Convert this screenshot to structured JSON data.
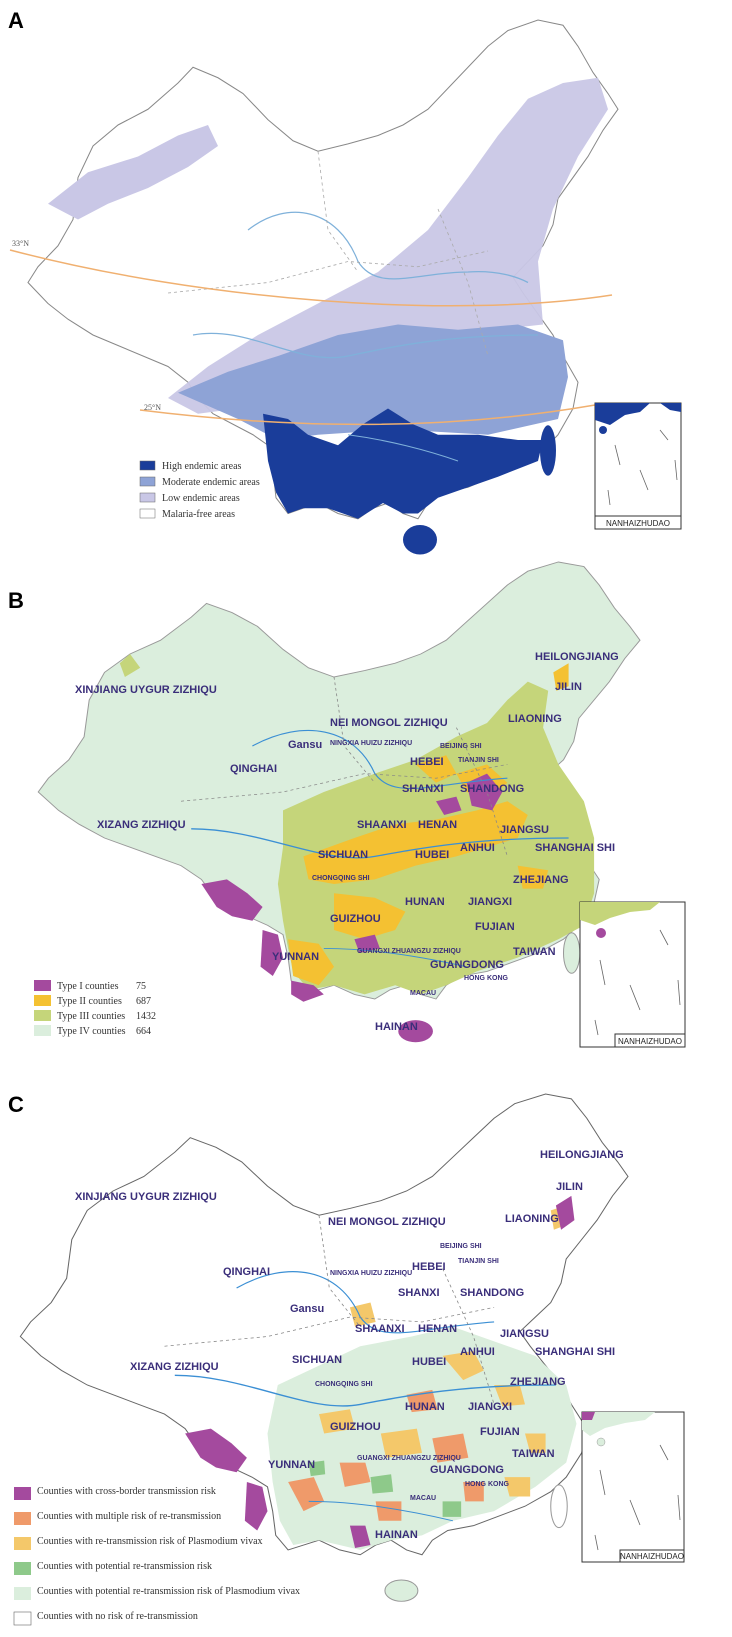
{
  "panels": [
    {
      "letter": "A",
      "latitude_lines": [
        "33°N",
        "25°N"
      ],
      "legend": [
        {
          "label": "High endemic areas",
          "color": "#1a3d9a"
        },
        {
          "label": "Moderate endemic areas",
          "color": "#8ea3d6"
        },
        {
          "label": "Low endemic areas",
          "color": "#c9c7e6"
        },
        {
          "label": "Malaria-free areas",
          "color": "#ffffff"
        }
      ],
      "inset_label": "NANHAIZHUDAO"
    },
    {
      "letter": "B",
      "legend": [
        {
          "label": "Type I counties",
          "count": "75",
          "color": "#a44a9e"
        },
        {
          "label": "Type II counties",
          "count": "687",
          "color": "#f4c132"
        },
        {
          "label": "Type III counties",
          "count": "1432",
          "color": "#c5d57a"
        },
        {
          "label": "Type IV counties",
          "count": "664",
          "color": "#dbeedd"
        }
      ],
      "inset_label": "NANHAIZHUDAO"
    },
    {
      "letter": "C",
      "legend": [
        {
          "label": "Counties with cross-border transmission risk",
          "color": "#a44a9e"
        },
        {
          "label": "Counties with multiple risk of re-transmission",
          "color": "#ef9a6a"
        },
        {
          "label": "Counties with re-transmission risk of Plasmodium vivax",
          "color": "#f4c86a"
        },
        {
          "label": "Counties with potential re-transmission risk",
          "color": "#8ec98a"
        },
        {
          "label": "Counties with potential re-transmission risk of Plasmodium vivax",
          "color": "#dbeedd"
        },
        {
          "label": "Counties with no risk of re-transmission",
          "color": "#ffffff"
        }
      ],
      "inset_label": "NANHAIZHUDAO"
    }
  ],
  "provinces": {
    "heilongjiang": "HEILONGJIANG",
    "jilin": "JILIN",
    "liaoning": "LIAONING",
    "xinjiang": "XINJIANG UYGUR ZIZHIQU",
    "neimongol": "NEI MONGOL ZIZHIQU",
    "beijing": "BEIJING SHI",
    "tianjin": "TIANJIN SHI",
    "hebei": "HEBEI",
    "gansu": "Gansu",
    "ningxia": "NINGXIA HUIZU ZIZHIQU",
    "qinghai": "QINGHAI",
    "shanxi": "SHANXI",
    "shandong": "SHANDONG",
    "shaanxi": "SHAANXI",
    "henan": "HENAN",
    "jiangsu": "JIANGSU",
    "xizang": "XIZANG ZIZHIQU",
    "anhui": "ANHUI",
    "shanghai": "SHANGHAI SHI",
    "sichuan": "SICHUAN",
    "hubei": "HUBEI",
    "chongqing": "CHONGQING SHI",
    "zhejiang": "ZHEJIANG",
    "hunan": "HUNAN",
    "jiangxi": "JIANGXI",
    "guizhou": "GUIZHOU",
    "fujian": "FUJIAN",
    "yunnan": "YUNNAN",
    "guangxi": "GUANGXI ZHUANGZU ZIZHIQU",
    "guangdong": "GUANGDONG",
    "taiwan": "TAIWAN",
    "hongkong": "HONG KONG",
    "macau": "MACAU",
    "hainan": "HAINAN"
  }
}
